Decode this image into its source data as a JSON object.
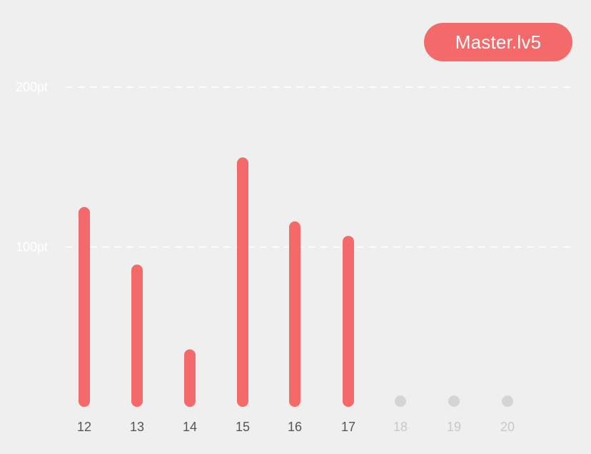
{
  "badge": {
    "label": "Master.lv5"
  },
  "colors": {
    "bar": "#f46a6a",
    "future_dot": "#d4d4d4",
    "active_label": "#555555",
    "future_label": "#c8c8c8",
    "gridline": "#ffffff",
    "axis_label": "#ffffff"
  },
  "chart_data": {
    "type": "bar",
    "title": "",
    "xlabel": "",
    "ylabel": "",
    "ylim": [
      0,
      200
    ],
    "yticks": [
      {
        "value": 100,
        "label": "100pt"
      },
      {
        "value": 200,
        "label": "200pt"
      }
    ],
    "categories": [
      "12",
      "13",
      "14",
      "15",
      "16",
      "17",
      "18",
      "19",
      "20"
    ],
    "values": [
      125,
      89,
      36,
      156,
      116,
      107,
      null,
      null,
      null
    ],
    "grid": true,
    "grid_style": "dashed"
  }
}
